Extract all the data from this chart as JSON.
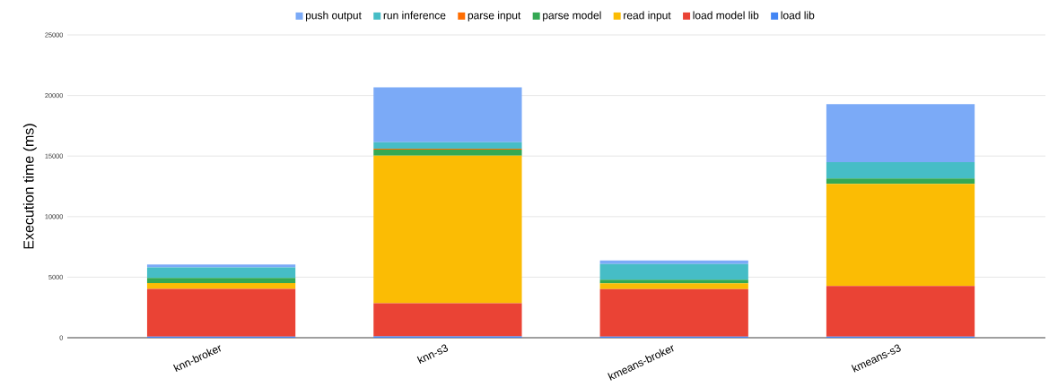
{
  "chart_data": {
    "type": "bar",
    "stacked": true,
    "ylabel": "Execution time (ms)",
    "categories": [
      "knn-broker",
      "knn-s3",
      "kmeans-broker",
      "kmeans-s3"
    ],
    "series": [
      {
        "name": "load lib",
        "color": "#4285f4",
        "values": [
          100,
          120,
          100,
          100
        ]
      },
      {
        "name": "load model lib",
        "color": "#ea4335",
        "values": [
          3930,
          2720,
          3920,
          4170
        ]
      },
      {
        "name": "read input",
        "color": "#fbbc04",
        "values": [
          490,
          12200,
          470,
          8430
        ]
      },
      {
        "name": "parse model",
        "color": "#34a853",
        "values": [
          420,
          490,
          300,
          440
        ]
      },
      {
        "name": "parse input",
        "color": "#ff6d01",
        "values": [
          null,
          70,
          null,
          null
        ]
      },
      {
        "name": "run inference",
        "color": "#46bdc6",
        "values": [
          860,
          550,
          1300,
          1360
        ]
      },
      {
        "name": "push output",
        "color": "#7baaf7",
        "values": [
          250,
          4520,
          290,
          4780
        ]
      }
    ],
    "ylim": [
      0,
      25000
    ],
    "yticks": [
      0,
      5000,
      10000,
      15000,
      20000,
      25000
    ],
    "grid": "y",
    "legend": "top"
  }
}
